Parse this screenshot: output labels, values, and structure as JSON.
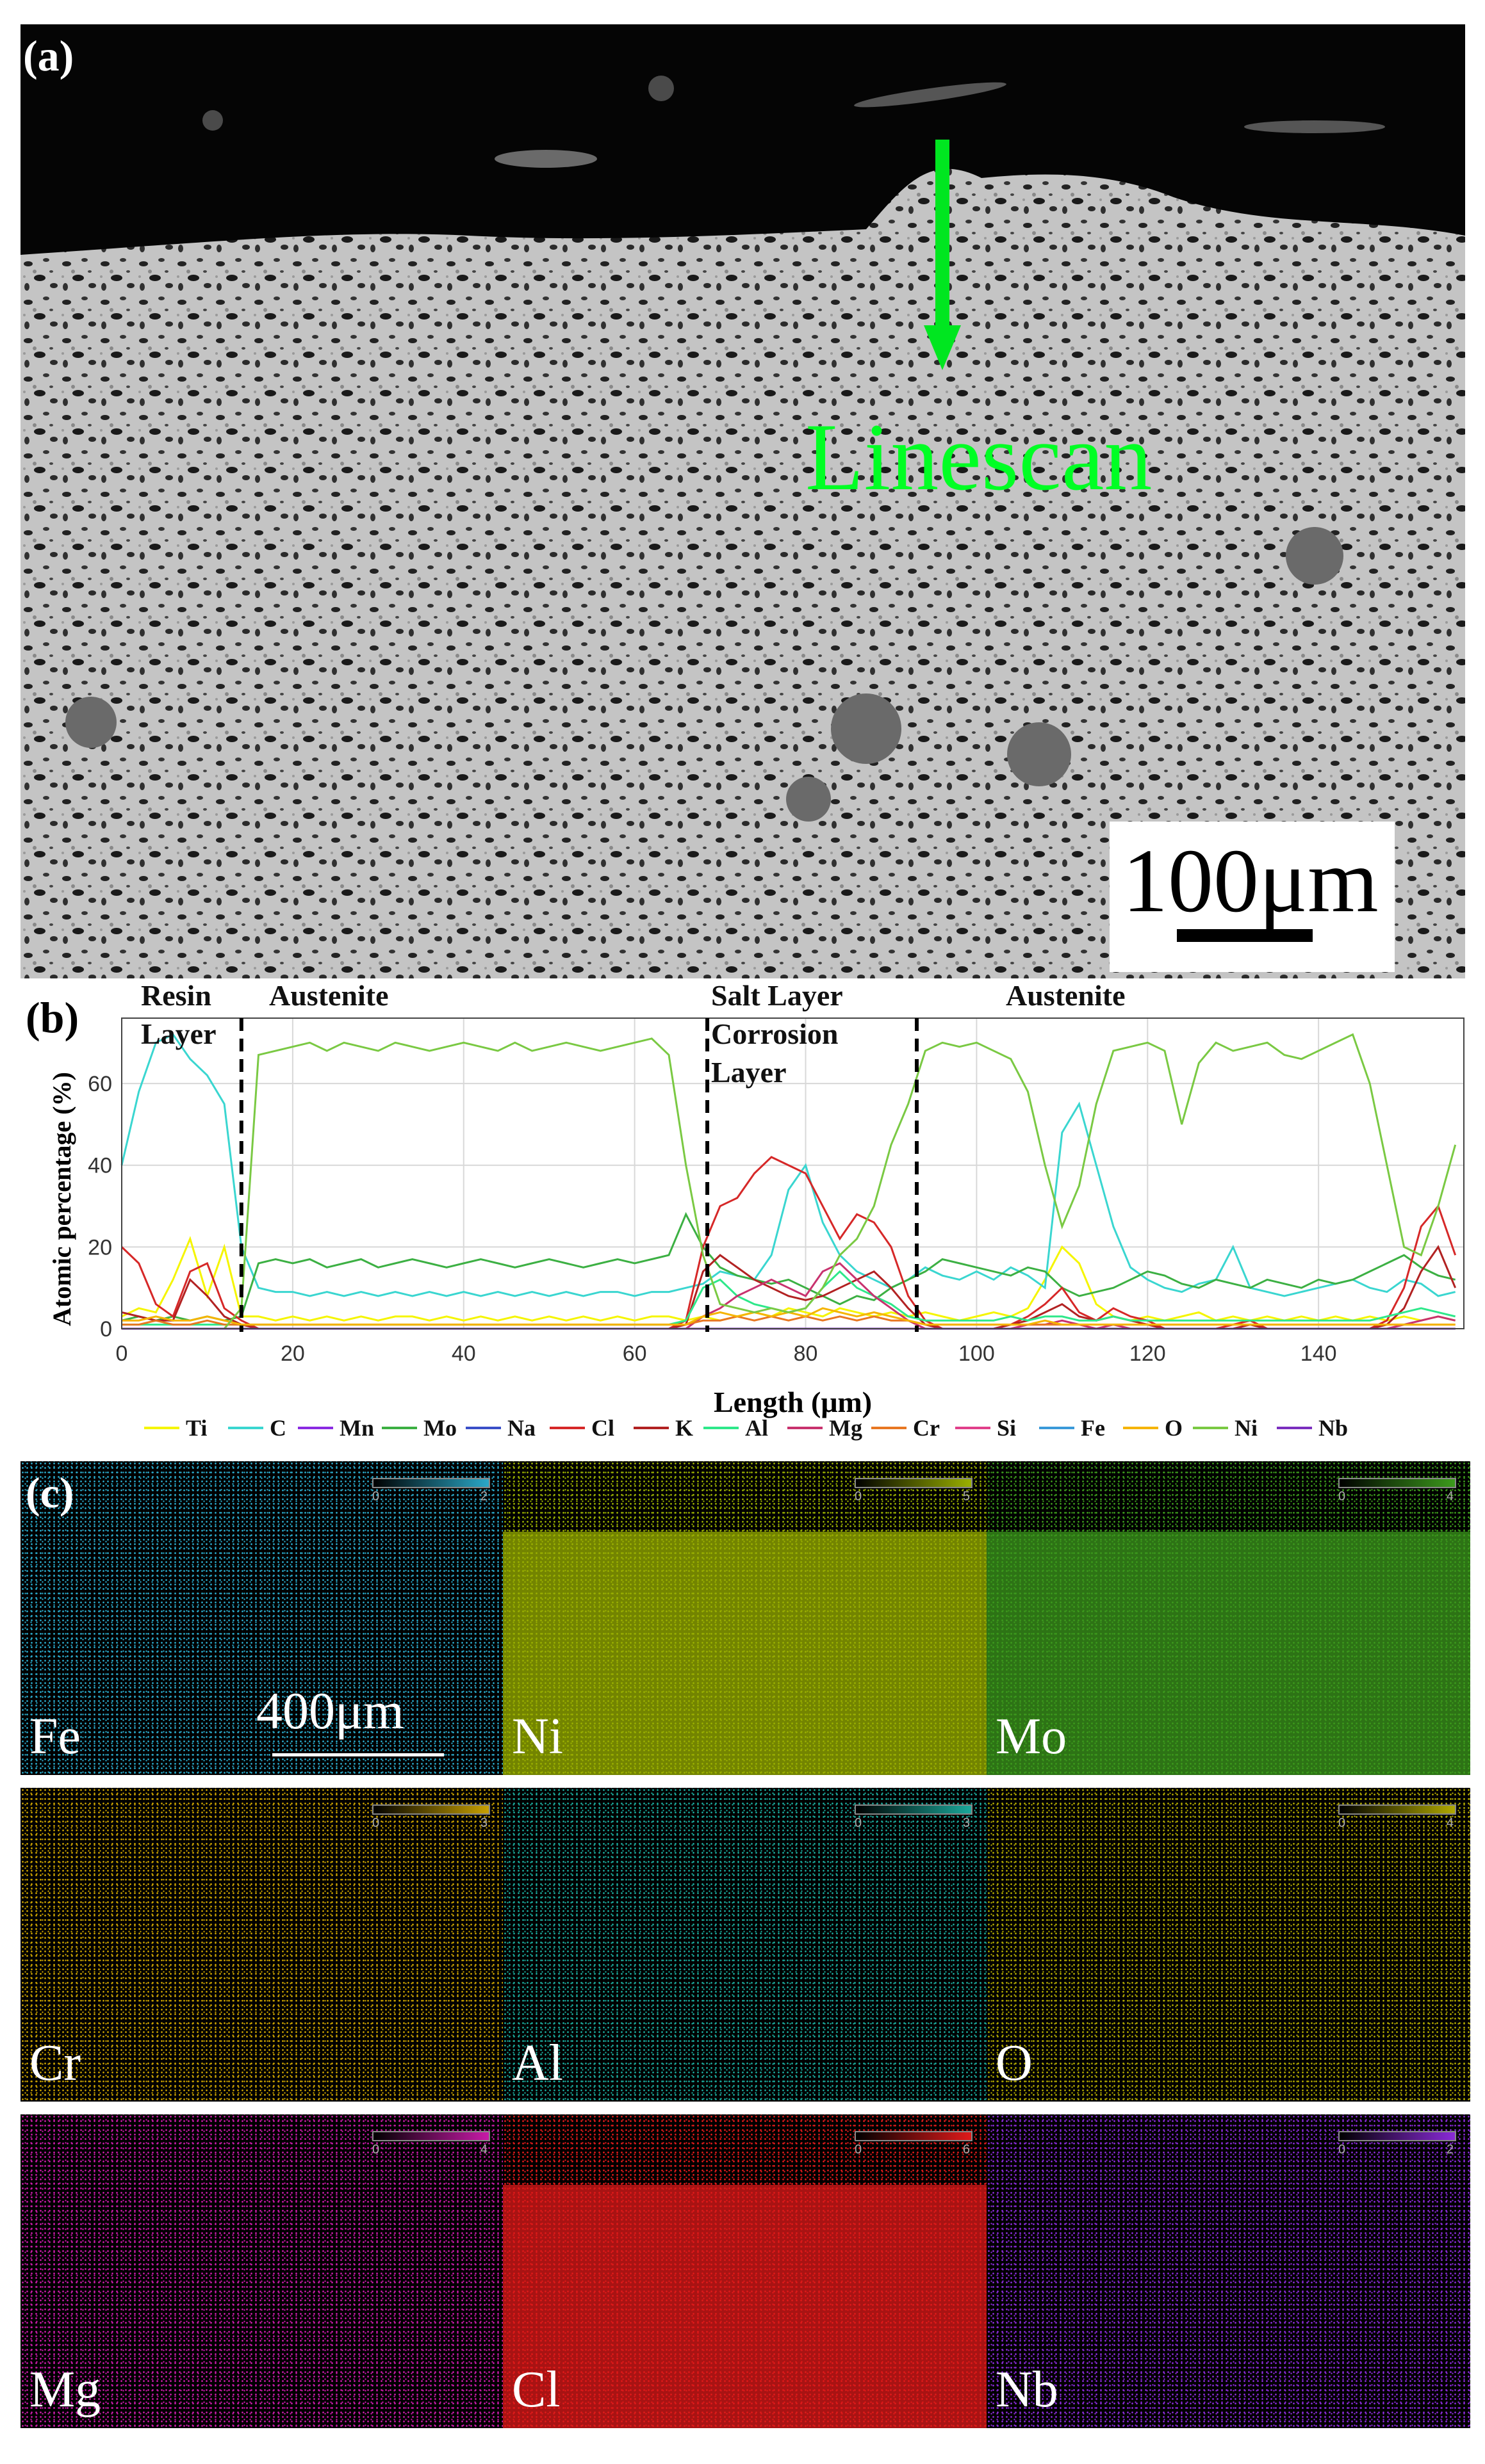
{
  "panel_a": {
    "label": "(a)",
    "annotation": "Linescan",
    "scale_label": "100μm"
  },
  "panel_b": {
    "label": "(b)",
    "regions": [
      "Resin",
      "Layer",
      "Austenite",
      "Salt Layer",
      "Corrosion",
      "Layer",
      "Austenite"
    ]
  },
  "chart_data": {
    "type": "line",
    "xlabel": "Length (μm)",
    "ylabel": "Atomic percentage (%)",
    "xlim": [
      0,
      157
    ],
    "ylim": [
      0,
      76
    ],
    "xticks": [
      0,
      20,
      40,
      60,
      80,
      100,
      120,
      140
    ],
    "yticks": [
      0,
      20,
      40,
      60
    ],
    "boundaries": [
      14,
      68.5,
      93
    ],
    "x": [
      0,
      2,
      4,
      6,
      8,
      10,
      12,
      14,
      16,
      18,
      20,
      22,
      24,
      26,
      28,
      30,
      32,
      34,
      36,
      38,
      40,
      42,
      44,
      46,
      48,
      50,
      52,
      54,
      56,
      58,
      60,
      62,
      64,
      66,
      68,
      70,
      72,
      74,
      76,
      78,
      80,
      82,
      84,
      86,
      88,
      90,
      92,
      94,
      96,
      98,
      100,
      102,
      104,
      106,
      108,
      110,
      112,
      114,
      116,
      118,
      120,
      122,
      124,
      126,
      128,
      130,
      132,
      134,
      136,
      138,
      140,
      142,
      144,
      146,
      148,
      150,
      152,
      154,
      156
    ],
    "series": [
      {
        "name": "Ti",
        "color": "#f5f500",
        "values": [
          3,
          5,
          4,
          12,
          22,
          8,
          20,
          3,
          3,
          2,
          3,
          2,
          3,
          2,
          3,
          2,
          3,
          3,
          2,
          3,
          2,
          3,
          2,
          3,
          2,
          3,
          2,
          3,
          2,
          3,
          2,
          3,
          3,
          2,
          3,
          2,
          3,
          4,
          3,
          5,
          4,
          3,
          5,
          4,
          3,
          4,
          3,
          4,
          3,
          2,
          3,
          4,
          3,
          5,
          12,
          20,
          16,
          6,
          3,
          2,
          3,
          2,
          3,
          4,
          2,
          3,
          2,
          3,
          2,
          3,
          2,
          3,
          2,
          3,
          2,
          3,
          2,
          3,
          2
        ]
      },
      {
        "name": "C",
        "color": "#3ad6d0",
        "values": [
          40,
          58,
          70,
          72,
          66,
          62,
          55,
          20,
          10,
          9,
          9,
          8,
          9,
          8,
          9,
          8,
          9,
          8,
          9,
          8,
          9,
          8,
          9,
          8,
          9,
          8,
          9,
          8,
          9,
          9,
          8,
          9,
          9,
          10,
          11,
          14,
          13,
          12,
          18,
          34,
          40,
          26,
          18,
          14,
          12,
          10,
          12,
          15,
          13,
          12,
          14,
          12,
          15,
          13,
          10,
          48,
          55,
          40,
          25,
          15,
          12,
          10,
          9,
          11,
          12,
          20,
          10,
          9,
          8,
          9,
          10,
          11,
          12,
          10,
          9,
          12,
          11,
          8,
          9
        ]
      },
      {
        "name": "Mn",
        "color": "#8a2be2",
        "values": [
          0,
          0,
          0,
          0,
          0,
          0,
          0,
          0,
          0,
          0,
          0,
          0,
          0,
          0,
          0,
          0,
          0,
          0,
          0,
          0,
          0,
          0,
          0,
          0,
          0,
          0,
          0,
          0,
          0,
          0,
          0,
          0,
          0,
          0,
          0,
          0,
          0,
          0,
          0,
          0,
          0,
          0,
          0,
          0,
          0,
          0,
          0,
          0,
          0,
          0,
          0,
          0,
          0,
          0,
          0,
          0,
          0,
          0,
          0,
          0,
          0,
          0,
          0,
          0,
          0,
          0,
          0,
          0,
          0,
          0,
          0,
          0,
          0,
          0,
          0,
          0,
          0,
          0,
          0
        ]
      },
      {
        "name": "Mo",
        "color": "#3cb043",
        "values": [
          2,
          3,
          2,
          3,
          2,
          3,
          2,
          3,
          16,
          17,
          16,
          17,
          15,
          16,
          17,
          15,
          16,
          17,
          16,
          15,
          16,
          17,
          16,
          15,
          16,
          17,
          16,
          15,
          16,
          17,
          16,
          17,
          18,
          28,
          20,
          15,
          13,
          12,
          11,
          12,
          10,
          8,
          6,
          8,
          7,
          10,
          12,
          14,
          17,
          16,
          15,
          14,
          13,
          15,
          14,
          10,
          8,
          9,
          10,
          12,
          14,
          13,
          11,
          10,
          12,
          11,
          10,
          12,
          11,
          10,
          12,
          11,
          12,
          14,
          16,
          18,
          15,
          13,
          12
        ]
      },
      {
        "name": "Na",
        "color": "#3a4fc8",
        "values": [
          0,
          0,
          0,
          0,
          0,
          0,
          0,
          0,
          0,
          0,
          0,
          0,
          0,
          0,
          0,
          0,
          0,
          0,
          0,
          0,
          0,
          0,
          0,
          0,
          0,
          0,
          0,
          0,
          0,
          0,
          0,
          0,
          0,
          0,
          0,
          0,
          0,
          0,
          0,
          0,
          0,
          0,
          0,
          0,
          0,
          0,
          0,
          0,
          0,
          0,
          0,
          0,
          0,
          0,
          0,
          0,
          0,
          0,
          0,
          0,
          0,
          0,
          0,
          0,
          0,
          0,
          0,
          0,
          0,
          0,
          0,
          0,
          0,
          0,
          0,
          0,
          0,
          0,
          0
        ]
      },
      {
        "name": "Cl",
        "color": "#d62828",
        "values": [
          20,
          16,
          6,
          3,
          14,
          16,
          5,
          2,
          0,
          0,
          0,
          0,
          0,
          0,
          0,
          0,
          0,
          0,
          0,
          0,
          0,
          0,
          0,
          0,
          0,
          0,
          0,
          0,
          0,
          0,
          0,
          0,
          0,
          2,
          20,
          30,
          32,
          38,
          42,
          40,
          38,
          30,
          22,
          28,
          26,
          20,
          8,
          2,
          0,
          0,
          0,
          0,
          1,
          3,
          6,
          10,
          4,
          2,
          5,
          3,
          2,
          0,
          0,
          0,
          0,
          1,
          2,
          0,
          0,
          0,
          0,
          0,
          0,
          0,
          2,
          10,
          25,
          30,
          18
        ]
      },
      {
        "name": "K",
        "color": "#b22222",
        "values": [
          4,
          3,
          2,
          2,
          12,
          8,
          3,
          1,
          0,
          0,
          0,
          0,
          0,
          0,
          0,
          0,
          0,
          0,
          0,
          0,
          0,
          0,
          0,
          0,
          0,
          0,
          0,
          0,
          0,
          0,
          0,
          0,
          0,
          1,
          14,
          18,
          15,
          12,
          10,
          8,
          7,
          8,
          10,
          12,
          14,
          10,
          5,
          1,
          0,
          0,
          0,
          0,
          1,
          2,
          4,
          6,
          3,
          2,
          3,
          2,
          1,
          0,
          0,
          0,
          0,
          0,
          1,
          0,
          0,
          0,
          0,
          0,
          0,
          0,
          1,
          5,
          14,
          20,
          10
        ]
      },
      {
        "name": "Al",
        "color": "#2ee88a",
        "values": [
          1,
          1,
          1,
          1,
          1,
          1,
          1,
          1,
          1,
          1,
          1,
          1,
          1,
          1,
          1,
          1,
          1,
          1,
          1,
          1,
          1,
          1,
          1,
          1,
          1,
          1,
          1,
          1,
          1,
          1,
          1,
          1,
          1,
          2,
          10,
          12,
          8,
          6,
          5,
          4,
          5,
          10,
          14,
          10,
          8,
          6,
          3,
          2,
          2,
          2,
          2,
          2,
          3,
          2,
          3,
          3,
          2,
          2,
          3,
          2,
          2,
          2,
          2,
          2,
          2,
          2,
          2,
          2,
          2,
          2,
          2,
          2,
          2,
          2,
          3,
          4,
          5,
          4,
          3
        ]
      },
      {
        "name": "Mg",
        "color": "#c8326e",
        "values": [
          0,
          0,
          0,
          0,
          0,
          0,
          0,
          0,
          0,
          0,
          0,
          0,
          0,
          0,
          0,
          0,
          0,
          0,
          0,
          0,
          0,
          0,
          0,
          0,
          0,
          0,
          0,
          0,
          0,
          0,
          0,
          0,
          0,
          0,
          3,
          5,
          8,
          10,
          12,
          10,
          8,
          14,
          16,
          12,
          8,
          5,
          2,
          0,
          0,
          0,
          0,
          0,
          0,
          1,
          1,
          2,
          1,
          0,
          1,
          0,
          0,
          0,
          0,
          0,
          0,
          0,
          0,
          0,
          0,
          0,
          0,
          0,
          0,
          0,
          0,
          1,
          2,
          3,
          2
        ]
      },
      {
        "name": "Cr",
        "color": "#e87722",
        "values": [
          1,
          1,
          2,
          1,
          1,
          2,
          1,
          1,
          1,
          1,
          1,
          1,
          1,
          1,
          1,
          1,
          1,
          1,
          1,
          1,
          1,
          1,
          1,
          1,
          1,
          1,
          1,
          1,
          1,
          1,
          1,
          1,
          1,
          1,
          2,
          2,
          3,
          2,
          3,
          2,
          3,
          2,
          3,
          2,
          3,
          2,
          2,
          1,
          1,
          1,
          1,
          1,
          1,
          1,
          1,
          1,
          1,
          1,
          1,
          1,
          1,
          1,
          1,
          1,
          1,
          1,
          1,
          1,
          1,
          1,
          1,
          1,
          1,
          1,
          1,
          1,
          1,
          1,
          1
        ]
      },
      {
        "name": "Si",
        "color": "#e0408a",
        "values": [
          0,
          0,
          0,
          0,
          0,
          0,
          0,
          0,
          0,
          0,
          0,
          0,
          0,
          0,
          0,
          0,
          0,
          0,
          0,
          0,
          0,
          0,
          0,
          0,
          0,
          0,
          0,
          0,
          0,
          0,
          0,
          0,
          0,
          0,
          0,
          0,
          0,
          0,
          0,
          0,
          0,
          0,
          0,
          0,
          0,
          0,
          0,
          0,
          0,
          0,
          0,
          0,
          0,
          0,
          0,
          0,
          0,
          0,
          0,
          0,
          0,
          0,
          0,
          0,
          0,
          0,
          0,
          0,
          0,
          0,
          0,
          0,
          0,
          0,
          0,
          0,
          0,
          0,
          0
        ]
      },
      {
        "name": "Fe",
        "color": "#3a9ad9",
        "values": [
          0,
          0,
          0,
          0,
          0,
          0,
          0,
          0,
          0,
          0,
          0,
          0,
          0,
          0,
          0,
          0,
          0,
          0,
          0,
          0,
          0,
          0,
          0,
          0,
          0,
          0,
          0,
          0,
          0,
          0,
          0,
          0,
          0,
          0,
          0,
          0,
          0,
          0,
          0,
          0,
          0,
          0,
          0,
          0,
          0,
          0,
          0,
          0,
          0,
          0,
          0,
          0,
          0,
          0,
          0,
          0,
          0,
          0,
          0,
          0,
          0,
          0,
          0,
          0,
          0,
          0,
          0,
          0,
          0,
          0,
          0,
          0,
          0,
          0,
          0,
          0,
          0,
          0,
          0
        ]
      },
      {
        "name": "O",
        "color": "#f5b400",
        "values": [
          2,
          2,
          3,
          2,
          2,
          3,
          2,
          1,
          1,
          1,
          1,
          1,
          1,
          1,
          1,
          1,
          1,
          1,
          1,
          1,
          1,
          1,
          1,
          1,
          1,
          1,
          1,
          1,
          1,
          1,
          1,
          1,
          1,
          1,
          3,
          4,
          3,
          4,
          3,
          4,
          3,
          5,
          4,
          3,
          4,
          3,
          2,
          1,
          1,
          1,
          1,
          1,
          1,
          1,
          2,
          1,
          1,
          1,
          1,
          1,
          1,
          1,
          1,
          1,
          1,
          1,
          1,
          1,
          1,
          1,
          1,
          1,
          1,
          1,
          1,
          1,
          1,
          1,
          1
        ]
      },
      {
        "name": "Ni",
        "color": "#7ac943",
        "values": [
          0,
          0,
          0,
          0,
          0,
          0,
          0,
          5,
          67,
          68,
          69,
          70,
          68,
          70,
          69,
          68,
          70,
          69,
          68,
          69,
          70,
          69,
          68,
          70,
          68,
          69,
          70,
          69,
          68,
          69,
          70,
          71,
          67,
          40,
          18,
          6,
          5,
          4,
          5,
          4,
          5,
          10,
          18,
          22,
          30,
          45,
          55,
          68,
          70,
          69,
          70,
          68,
          66,
          58,
          40,
          25,
          35,
          55,
          68,
          69,
          70,
          68,
          50,
          65,
          70,
          68,
          69,
          70,
          67,
          66,
          68,
          70,
          72,
          60,
          40,
          20,
          18,
          30,
          45
        ]
      },
      {
        "name": "Nb",
        "color": "#7b2fbf",
        "values": [
          0,
          0,
          0,
          0,
          0,
          0,
          0,
          0,
          0,
          0,
          0,
          0,
          0,
          0,
          0,
          0,
          0,
          0,
          0,
          0,
          0,
          0,
          0,
          0,
          0,
          0,
          0,
          0,
          0,
          0,
          0,
          0,
          0,
          0,
          0,
          0,
          0,
          0,
          0,
          0,
          0,
          0,
          0,
          0,
          0,
          0,
          0,
          0,
          0,
          0,
          0,
          0,
          0,
          0,
          0,
          0,
          0,
          0,
          0,
          0,
          0,
          0,
          0,
          0,
          0,
          0,
          0,
          0,
          0,
          0,
          0,
          0,
          0,
          0,
          0,
          0,
          0,
          0,
          0
        ]
      }
    ]
  },
  "panel_c": {
    "label": "(c)",
    "scale_label": "400μm",
    "maps": [
      {
        "element": "Fe",
        "scale_min": "0",
        "scale_max": "2",
        "color": "#2aa8c8"
      },
      {
        "element": "Ni",
        "scale_min": "0",
        "scale_max": "5",
        "color": "#9ab000"
      },
      {
        "element": "Mo",
        "scale_min": "0",
        "scale_max": "4",
        "color": "#3c9a1c"
      },
      {
        "element": "Cr",
        "scale_min": "0",
        "scale_max": "3",
        "color": "#c8a000"
      },
      {
        "element": "Al",
        "scale_min": "0",
        "scale_max": "3",
        "color": "#1aa89a"
      },
      {
        "element": "O",
        "scale_min": "0",
        "scale_max": "4",
        "color": "#b0a800"
      },
      {
        "element": "Mg",
        "scale_min": "0",
        "scale_max": "4",
        "color": "#c81aa8"
      },
      {
        "element": "Cl",
        "scale_min": "0",
        "scale_max": "6",
        "color": "#e01a1a"
      },
      {
        "element": "Nb",
        "scale_min": "0",
        "scale_max": "2",
        "color": "#8a2ad8"
      }
    ]
  }
}
